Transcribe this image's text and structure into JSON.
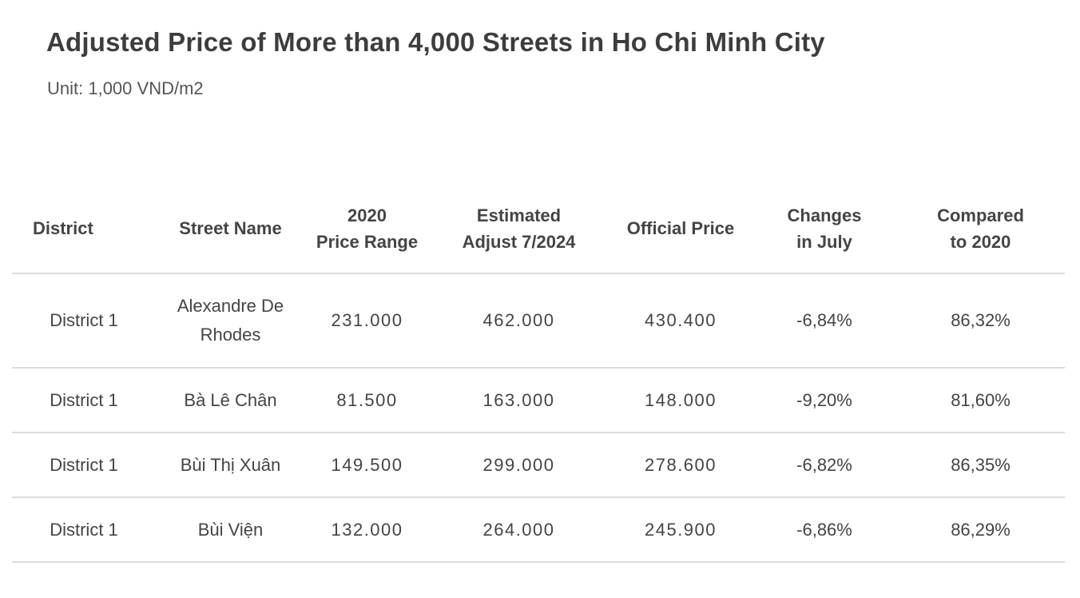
{
  "title": "Adjusted Price of More than 4,000 Streets in Ho Chi Minh City",
  "subtitle": "Unit: 1,000 VND/m2",
  "table": {
    "headers": [
      {
        "line1": "District",
        "line2": ""
      },
      {
        "line1": "Street Name",
        "line2": ""
      },
      {
        "line1": "2020",
        "line2": "Price Range"
      },
      {
        "line1": "Estimated",
        "line2": "Adjust 7/2024"
      },
      {
        "line1": "Official Price",
        "line2": ""
      },
      {
        "line1": "Changes",
        "line2": "in July"
      },
      {
        "line1": "Compared",
        "line2": "to 2020"
      }
    ],
    "rows": [
      {
        "district": "District 1",
        "street": "Alexandre De Rhodes",
        "price_2020": "231.000",
        "estimated": "462.000",
        "official": "430.400",
        "change_july": "-6,84%",
        "vs_2020": "86,32%"
      },
      {
        "district": "District 1",
        "street": "Bà Lê Chân",
        "price_2020": "81.500",
        "estimated": "163.000",
        "official": "148.000",
        "change_july": "-9,20%",
        "vs_2020": "81,60%"
      },
      {
        "district": "District 1",
        "street": "Bùi Thị Xuân",
        "price_2020": "149.500",
        "estimated": "299.000",
        "official": "278.600",
        "change_july": "-6,82%",
        "vs_2020": "86,35%"
      },
      {
        "district": "District 1",
        "street": "Bùi Viện",
        "price_2020": "132.000",
        "estimated": "264.000",
        "official": "245.900",
        "change_july": "-6,86%",
        "vs_2020": "86,29%"
      }
    ]
  }
}
